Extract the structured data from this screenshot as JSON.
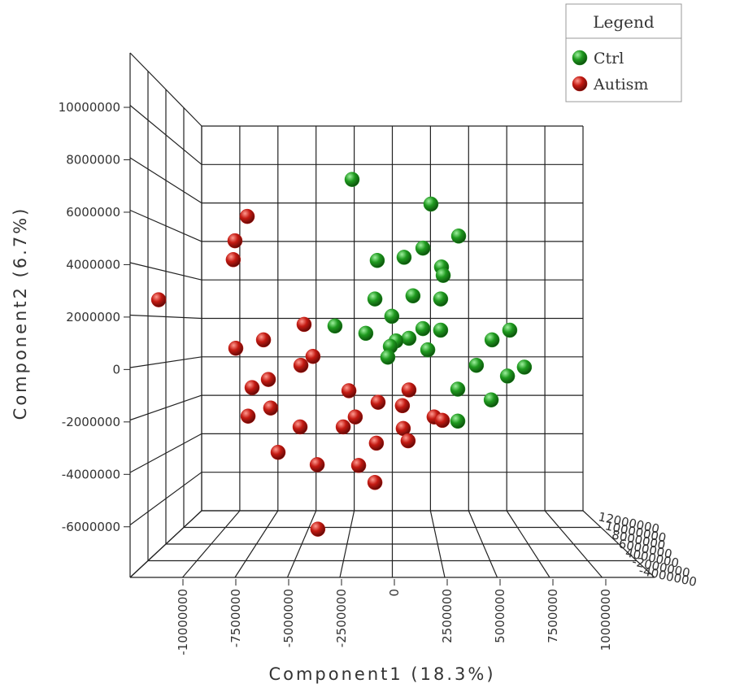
{
  "chart_data": {
    "type": "scatter",
    "xlabel": "Component1 (18.3%)",
    "ylabel": "Component2 (6.7%)",
    "xlim": [
      -12000000,
      10000000
    ],
    "ylim": [
      -7000000,
      10000000
    ],
    "xticks": [
      -10000000,
      -7500000,
      -5000000,
      -2500000,
      0,
      2500000,
      5000000,
      7500000,
      10000000
    ],
    "yticks": [
      -6000000,
      -4000000,
      -2000000,
      0,
      2000000,
      4000000,
      6000000,
      8000000,
      10000000
    ],
    "zticks": [
      12000000,
      10000000,
      8000000,
      6000000,
      4000000,
      -2000000,
      -4000000
    ],
    "legend_title": "Legend",
    "legend": "upper right",
    "series": [
      {
        "name": "Ctrl",
        "color": "#1f9a1f",
        "x": [
          -2000000,
          1730000,
          3040000,
          1350000,
          460000,
          -810000,
          2230000,
          2310000,
          -920000,
          880000,
          2190000,
          -120000,
          -2810000,
          -1350000,
          1350000,
          2190000,
          690000,
          80000,
          -190000,
          1580000,
          -310000,
          4620000,
          5460000,
          3880000,
          6150000,
          5350000,
          3000000,
          4580000,
          3000000
        ],
        "values": [
          7250000,
          6310000,
          5090000,
          4630000,
          4280000,
          4160000,
          3910000,
          3590000,
          2690000,
          2810000,
          2690000,
          2030000,
          1660000,
          1380000,
          1560000,
          1500000,
          1190000,
          1090000,
          880000,
          750000,
          470000,
          1130000,
          1500000,
          160000,
          90000,
          -250000,
          -750000,
          -1160000,
          -1970000
        ]
      },
      {
        "name": "Autism",
        "color": "#c41a12",
        "x": [
          -11150000,
          -6960000,
          -7540000,
          -7620000,
          -7500000,
          -6190000,
          -4270000,
          -3850000,
          -4420000,
          -5960000,
          -6730000,
          -5850000,
          -6920000,
          -4460000,
          -5500000,
          -3650000,
          -3620000,
          -2150000,
          -1850000,
          -2420000,
          -1690000,
          -770000,
          380000,
          690000,
          420000,
          650000,
          -850000,
          -920000,
          1880000,
          2270000
        ],
        "values": [
          2660000,
          5840000,
          4910000,
          4190000,
          810000,
          1130000,
          1720000,
          500000,
          160000,
          -380000,
          -690000,
          -1470000,
          -1780000,
          -2190000,
          -3160000,
          -3630000,
          -6090000,
          -810000,
          -1810000,
          -2190000,
          -3660000,
          -1250000,
          -1380000,
          -780000,
          -2250000,
          -2720000,
          -2810000,
          -4310000,
          -1810000,
          -1940000
        ]
      }
    ]
  }
}
